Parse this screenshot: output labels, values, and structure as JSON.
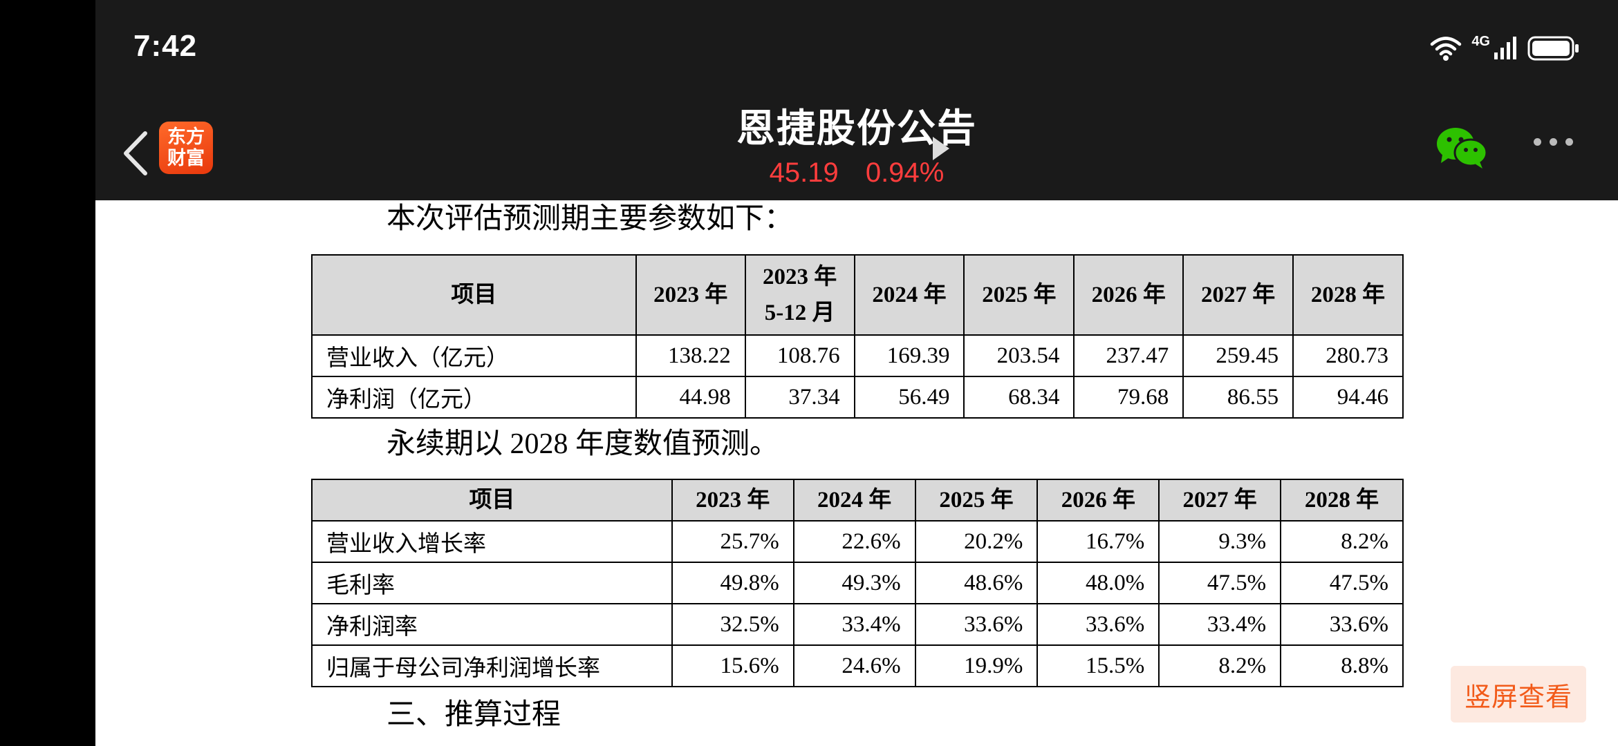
{
  "status": {
    "time": "7:42",
    "network": "4G"
  },
  "header": {
    "app_logo_line1": "东方",
    "app_logo_line2": "财富",
    "title": "恩捷股份公告",
    "price": "45.19",
    "change": "0.94%"
  },
  "doc": {
    "para1": "本次评估预测期主要参数如下：",
    "table1": {
      "headers": [
        "项目",
        "2023 年",
        "2023 年\n5-12 月",
        "2024 年",
        "2025 年",
        "2026 年",
        "2027 年",
        "2028 年"
      ],
      "rows": [
        [
          "营业收入（亿元）",
          "138.22",
          "108.76",
          "169.39",
          "203.54",
          "237.47",
          "259.45",
          "280.73"
        ],
        [
          "净利润（亿元）",
          "44.98",
          "37.34",
          "56.49",
          "68.34",
          "79.68",
          "86.55",
          "94.46"
        ]
      ]
    },
    "para2": "永续期以 2028 年度数值预测。",
    "table2": {
      "headers": [
        "项目",
        "2023 年",
        "2024 年",
        "2025 年",
        "2026 年",
        "2027 年",
        "2028 年"
      ],
      "rows": [
        [
          "营业收入增长率",
          "25.7%",
          "22.6%",
          "20.2%",
          "16.7%",
          "9.3%",
          "8.2%"
        ],
        [
          "毛利率",
          "49.8%",
          "49.3%",
          "48.6%",
          "48.0%",
          "47.5%",
          "47.5%"
        ],
        [
          "净利润率",
          "32.5%",
          "33.4%",
          "33.6%",
          "33.6%",
          "33.4%",
          "33.6%"
        ],
        [
          "归属于母公司净利润增长率",
          "15.6%",
          "24.6%",
          "19.9%",
          "15.5%",
          "8.2%",
          "8.8%"
        ]
      ]
    },
    "para3": "三、推算过程"
  },
  "portrait_button": "竖屏查看",
  "colors": {
    "quote_red": "#ff3d3d",
    "accent_orange": "#f25a19",
    "header_bg": "#1a1a1a"
  },
  "icons": [
    "back-icon",
    "app-logo",
    "play-arrow-icon",
    "wechat-icon",
    "more-icon",
    "wifi-icon",
    "cellular-signal-icon",
    "battery-icon"
  ]
}
